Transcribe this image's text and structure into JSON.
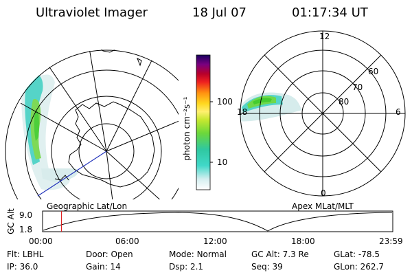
{
  "header": {
    "title": "Ultraviolet Imager",
    "date": "18 Jul 07",
    "time": "01:17:34 UT"
  },
  "colorbar": {
    "unit": "photon cm⁻²s⁻¹",
    "tick_100": "100",
    "tick_10": "10"
  },
  "left_panel": {
    "caption": "Geographic Lat/Lon"
  },
  "right_panel": {
    "caption": "Apex MLat/MLT",
    "mlt_labels": [
      "12",
      "18",
      "6",
      "0"
    ],
    "lat_labels": [
      "60",
      "70",
      "80"
    ]
  },
  "altitude_strip": {
    "axis_label": "GC Alt",
    "y_top": "9.0",
    "y_bottom": "1.8",
    "time_ticks": [
      "00:00",
      "06:00",
      "12:00",
      "18:00",
      "23:59"
    ],
    "current_time_fraction": 0.054
  },
  "info": {
    "row1": [
      {
        "label": "Flt:",
        "value": "LBHL"
      },
      {
        "label": "Door:",
        "value": "Open"
      },
      {
        "label": "Mode:",
        "value": "Normal"
      },
      {
        "label": "GC Alt:",
        "value": "7.3 Re"
      },
      {
        "label": "GLat:",
        "value": "-78.5"
      }
    ],
    "row2": [
      {
        "label": "IP:",
        "value": "36.0"
      },
      {
        "label": "Gain:",
        "value": "14"
      },
      {
        "label": "Dsp:",
        "value": "2.1"
      },
      {
        "label": "Seq:",
        "value": "39"
      },
      {
        "label": "GLon:",
        "value": "262.7"
      }
    ]
  }
}
